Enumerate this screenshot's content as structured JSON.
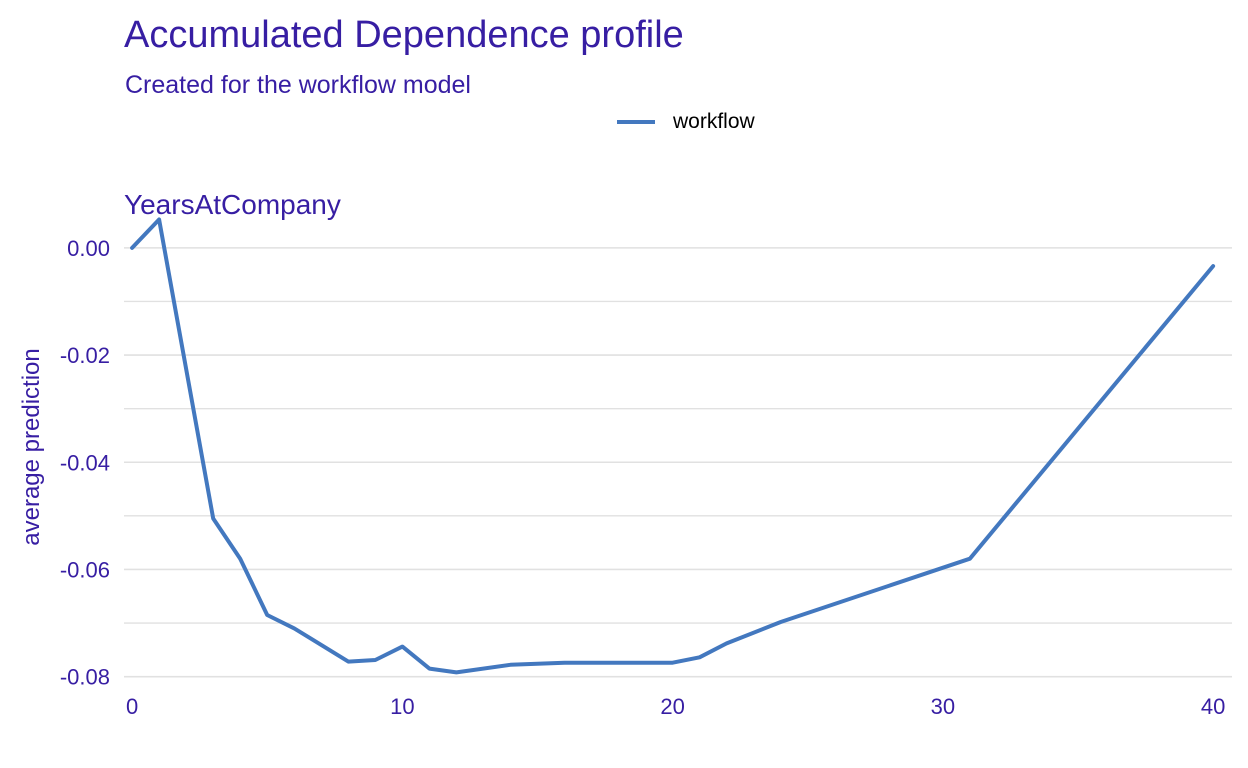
{
  "chart_data": {
    "type": "line",
    "title": "Accumulated Dependence profile",
    "subtitle": "Created for the workflow model",
    "panel_title": "YearsAtCompany",
    "xlabel": "",
    "ylabel": "average prediction",
    "xlim": [
      -0.3,
      40.7
    ],
    "ylim": [
      -0.081,
      0.0052
    ],
    "x_ticks": [
      0,
      10,
      20,
      30,
      40
    ],
    "x_tick_labels": [
      "0",
      "10",
      "20",
      "30",
      "40"
    ],
    "y_ticks": [
      0.0,
      -0.02,
      -0.04,
      -0.06,
      -0.08
    ],
    "y_tick_labels": [
      "0.00",
      "-0.02",
      "-0.04",
      "-0.06",
      "-0.08"
    ],
    "y_minor_gridlines": [
      -0.01,
      -0.03,
      -0.05,
      -0.07
    ],
    "grid": true,
    "legend_position": "top",
    "series": [
      {
        "name": "workflow",
        "color": "#4378bf",
        "x": [
          0,
          1,
          3,
          4,
          5,
          6,
          8,
          9,
          10,
          11,
          12,
          14,
          16,
          20,
          21,
          22,
          24,
          31,
          40
        ],
        "y": [
          0.0,
          0.0053,
          -0.0505,
          -0.058,
          -0.0685,
          -0.071,
          -0.0772,
          -0.0769,
          -0.0744,
          -0.0785,
          -0.0792,
          -0.0778,
          -0.0774,
          -0.0774,
          -0.0764,
          -0.0738,
          -0.0698,
          -0.058,
          -0.0034
        ]
      }
    ]
  },
  "colors": {
    "text": "#371ea3",
    "grid": "#e1e1e1",
    "line": "#4378bf"
  }
}
